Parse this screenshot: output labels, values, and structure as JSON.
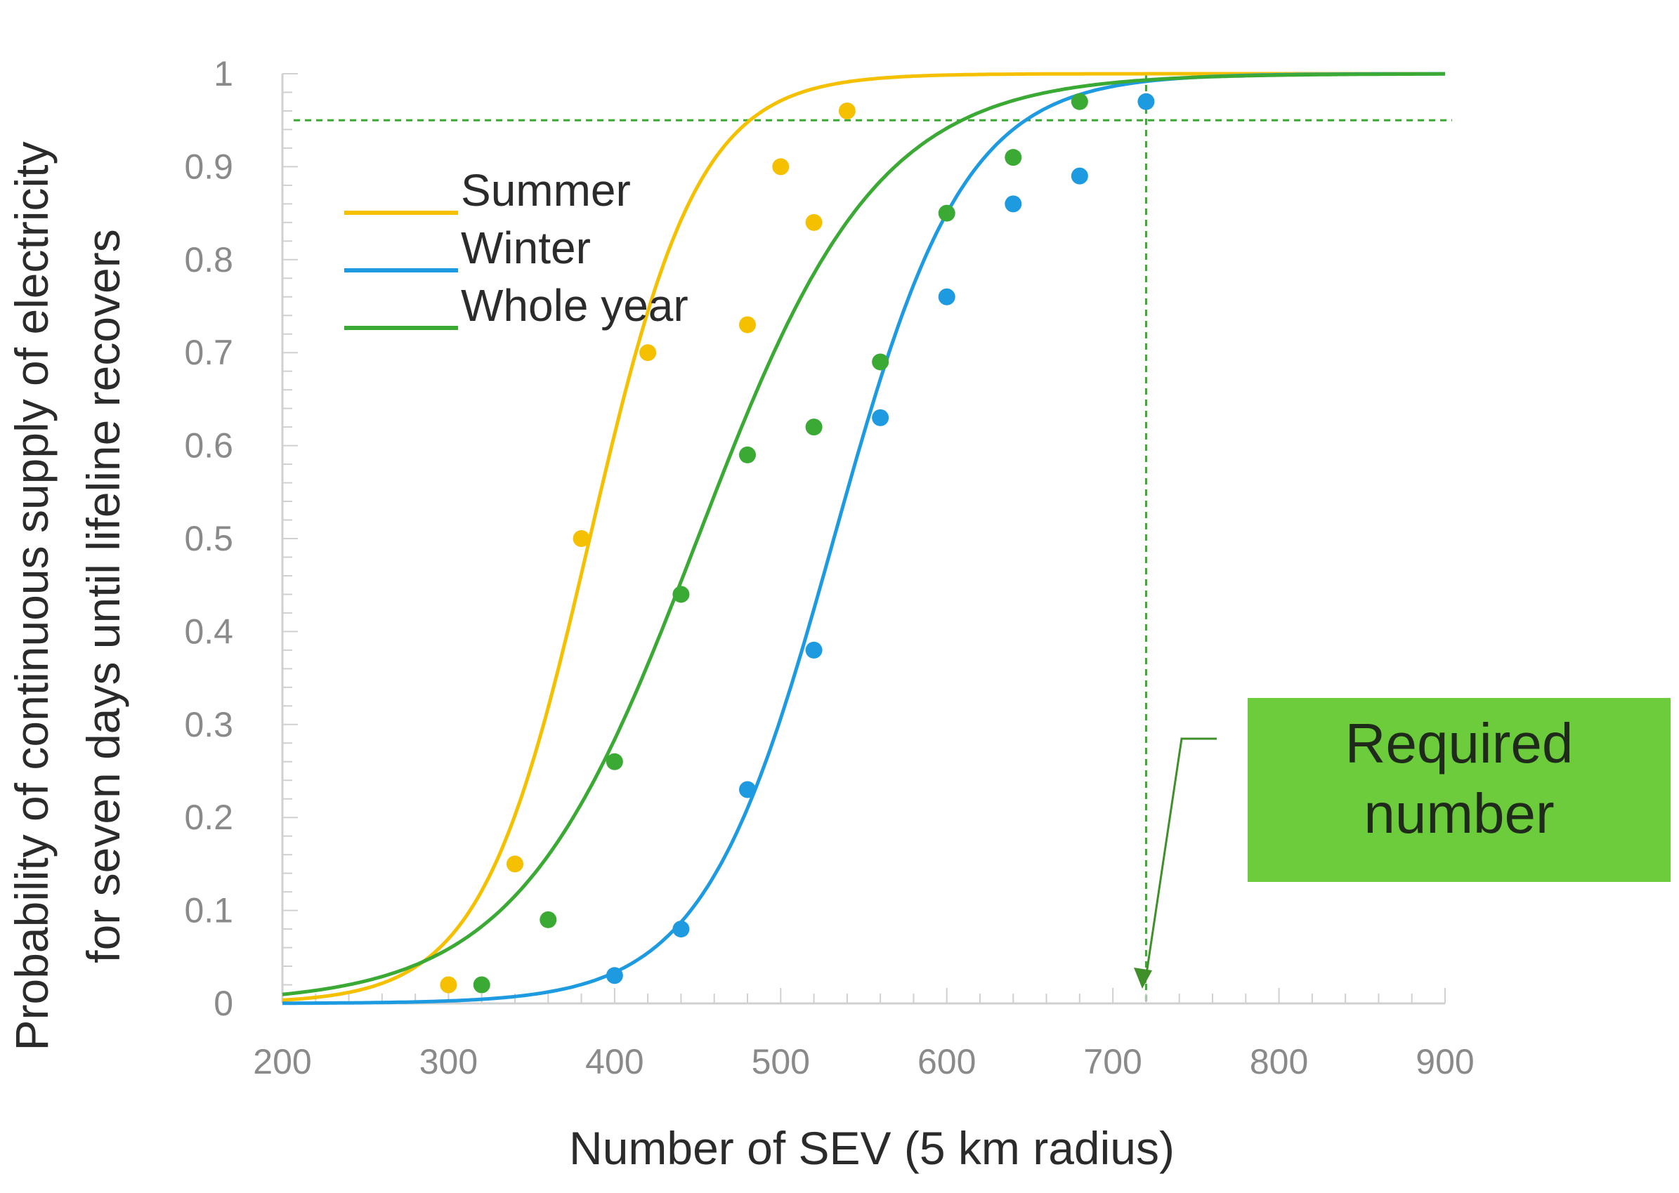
{
  "chart_data": {
    "type": "scatter",
    "title": "",
    "xlabel": "Number of SEV (5 km radius)",
    "ylabel_lines": [
      "Probability of continuous supply of electricity",
      "for seven days until lifeline recovers"
    ],
    "xlim": [
      200,
      900
    ],
    "ylim": [
      0,
      1
    ],
    "x_ticks": [
      "200",
      "300",
      "400",
      "500",
      "600",
      "700",
      "800",
      "900"
    ],
    "y_ticks": [
      "0",
      "0.1",
      "0.2",
      "0.3",
      "0.4",
      "0.5",
      "0.6",
      "0.7",
      "0.8",
      "0.9",
      "1"
    ],
    "grid": false,
    "legend_position": "upper-left",
    "series": [
      {
        "name": "Summer",
        "color": "#f5c000",
        "points": [
          [
            300,
            0.02
          ],
          [
            340,
            0.15
          ],
          [
            380,
            0.5
          ],
          [
            420,
            0.7
          ],
          [
            480,
            0.73
          ],
          [
            500,
            0.9
          ],
          [
            520,
            0.84
          ],
          [
            540,
            0.96
          ]
        ],
        "fit": {
          "model": "logistic",
          "midpoint": 385,
          "slope": 0.0305
        }
      },
      {
        "name": "Winter",
        "color": "#1e9be0",
        "points": [
          [
            400,
            0.03
          ],
          [
            440,
            0.08
          ],
          [
            480,
            0.23
          ],
          [
            520,
            0.38
          ],
          [
            560,
            0.63
          ],
          [
            600,
            0.76
          ],
          [
            640,
            0.86
          ],
          [
            680,
            0.89
          ],
          [
            720,
            0.97
          ]
        ],
        "fit": {
          "model": "logistic",
          "midpoint": 532,
          "slope": 0.0255
        }
      },
      {
        "name": "Whole year",
        "color": "#3aaa35",
        "points": [
          [
            320,
            0.02
          ],
          [
            360,
            0.09
          ],
          [
            400,
            0.26
          ],
          [
            440,
            0.44
          ],
          [
            480,
            0.59
          ],
          [
            520,
            0.62
          ],
          [
            560,
            0.69
          ],
          [
            600,
            0.85
          ],
          [
            640,
            0.91
          ],
          [
            680,
            0.97
          ]
        ],
        "fit": {
          "model": "logistic",
          "midpoint": 450,
          "slope": 0.0185
        }
      }
    ],
    "reference_lines": {
      "y": 0.95,
      "x": 720,
      "color": "#3aaa35"
    },
    "annotation": {
      "lines": [
        "Required",
        "number"
      ],
      "fill": "#6ccc3c"
    }
  }
}
